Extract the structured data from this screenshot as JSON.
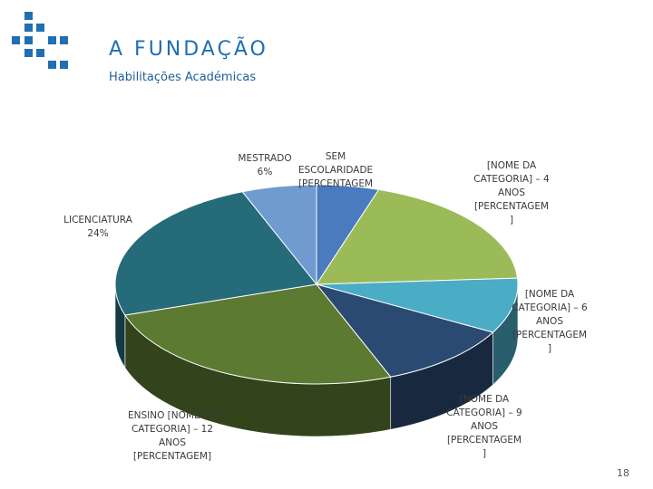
{
  "header": {
    "title": "A FUNDAÇÃO",
    "subtitle": "Habilitações Académicas",
    "logo_icon": "grid-squares-logo",
    "brand_color": "#1f6fb2"
  },
  "chart_data": {
    "type": "pie",
    "style": "3d",
    "title": "",
    "slices": [
      {
        "label": "SEM ESCOLARIDADE [PERCENTAGEM",
        "value": 5,
        "color": "#4b7bbf"
      },
      {
        "label": "[NOME DA CATEGORIA] – 4 ANOS [PERCENTAGEM ]",
        "value": 19,
        "color": "#9bbb59"
      },
      {
        "label": "[NOME DA CATEGORIA] – 6 ANOS [PERCENTAGEM ]",
        "value": 9,
        "color": "#4bacc6"
      },
      {
        "label": "[NOME DA CATEGORIA] – 9 ANOS [PERCENTAGEM ]",
        "value": 11,
        "color": "#2b4a72"
      },
      {
        "label": "ENSINO [NOME DA CATEGORIA] – 12 ANOS [PERCENTAGEM]",
        "value": 26,
        "color": "#5c7a32"
      },
      {
        "label": "LICENCIATURA 24%",
        "value": 24,
        "color": "#256b7a"
      },
      {
        "label": "MESTRADO 6%",
        "value": 6,
        "color": "#6f9bd0"
      }
    ]
  },
  "labels": {
    "sem_line1": "SEM",
    "sem_line2": "ESCOLARIDADE",
    "sem_line3": "[PERCENTAGEM",
    "mestrado_line1": "MESTRADO",
    "mestrado_line2": "6%",
    "lic_line1": "LICENCIATURA",
    "lic_line2": "24%",
    "cat4_line1": "[NOME DA",
    "cat4_line2": "CATEGORIA] – 4",
    "cat4_line3": "ANOS",
    "cat4_line4": "[PERCENTAGEM",
    "cat4_line5": "]",
    "cat6_line1": "[NOME DA",
    "cat6_line2": "CATEGORIA] – 6",
    "cat6_line3": "ANOS",
    "cat6_line4": "[PERCENTAGEM",
    "cat6_line5": "]",
    "cat9_line1": "[NOME DA",
    "cat9_line2": "CATEGORIA] – 9",
    "cat9_line3": "ANOS",
    "cat9_line4": "[PERCENTAGEM",
    "cat9_line5": "]",
    "ens_line1": "ENSINO [NOME DA",
    "ens_line2": "CATEGORIA] – 12",
    "ens_line3": "ANOS",
    "ens_line4": "[PERCENTAGEM]"
  },
  "footer": {
    "page_number": "18"
  }
}
